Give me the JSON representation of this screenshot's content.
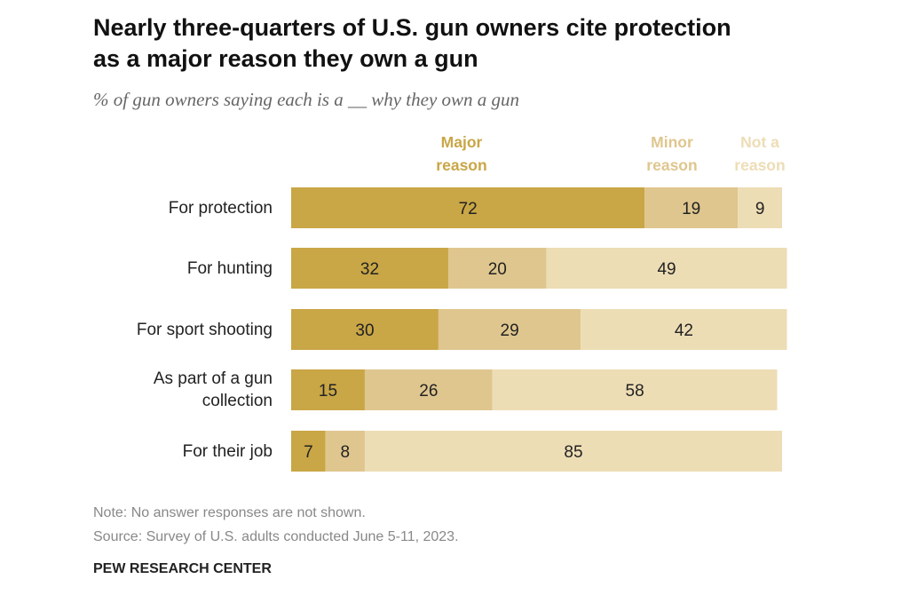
{
  "chart_data": {
    "type": "bar",
    "orientation": "horizontal",
    "stacked": true,
    "title": "Nearly three-quarters of U.S. gun owners cite protection as a major reason they own a gun",
    "subtitle": "% of gun owners saying each is a __ why they own a gun",
    "categories": [
      "For protection",
      "For hunting",
      "For sport shooting",
      "As part of a gun collection",
      "For their job"
    ],
    "series": [
      {
        "name": "Major reason",
        "color": "#C9A646",
        "values": [
          72,
          32,
          30,
          15,
          7
        ]
      },
      {
        "name": "Minor reason",
        "color": "#DFC68E",
        "values": [
          19,
          20,
          29,
          26,
          8
        ]
      },
      {
        "name": "Not a reason",
        "color": "#EDDDB5",
        "values": [
          9,
          49,
          42,
          58,
          85
        ]
      }
    ],
    "xlim": [
      0,
      100
    ],
    "grid": false,
    "legend": "top",
    "data_labels": true
  },
  "legend_lines": [
    [
      "Major",
      "reason"
    ],
    [
      "Minor",
      "reason"
    ],
    [
      "Not a",
      "reason"
    ]
  ],
  "label_lines": [
    [
      "For protection"
    ],
    [
      "For hunting"
    ],
    [
      "For sport shooting"
    ],
    [
      "As part of a gun",
      "collection"
    ],
    [
      "For their job"
    ]
  ],
  "note": "Note: No answer responses are not shown.",
  "source": "Source: Survey of U.S. adults conducted June 5-11, 2023.",
  "brand": "PEW RESEARCH CENTER"
}
